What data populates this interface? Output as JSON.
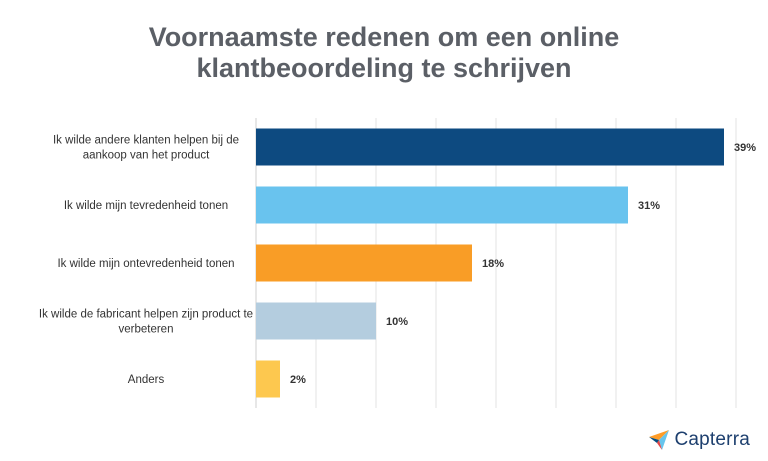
{
  "title_lines": [
    "Voornaamste redenen om een online",
    "klantbeoordeling te schrijven"
  ],
  "chart_data": {
    "type": "bar",
    "orientation": "horizontal",
    "title": "Voornaamste redenen om een online klantbeoordeling te schrijven",
    "categories": [
      [
        "Ik wilde andere klanten helpen bij de",
        "aankoop van het product"
      ],
      [
        "Ik wilde mijn tevredenheid tonen"
      ],
      [
        "Ik wilde mijn ontevredenheid tonen"
      ],
      [
        "Ik wilde de fabricant helpen zijn product te",
        "verbeteren"
      ],
      [
        "Anders"
      ]
    ],
    "values": [
      39,
      31,
      18,
      10,
      2
    ],
    "value_labels": [
      "39%",
      "31%",
      "18%",
      "10%",
      "2%"
    ],
    "colors": [
      "#0d4a80",
      "#69c3ee",
      "#f99d26",
      "#b4cddf",
      "#fdc84f"
    ],
    "xlim": [
      0,
      40
    ],
    "grid": true,
    "legend": false
  },
  "brand": {
    "name": "Capterra",
    "icon": "capterra-arrow-icon"
  }
}
